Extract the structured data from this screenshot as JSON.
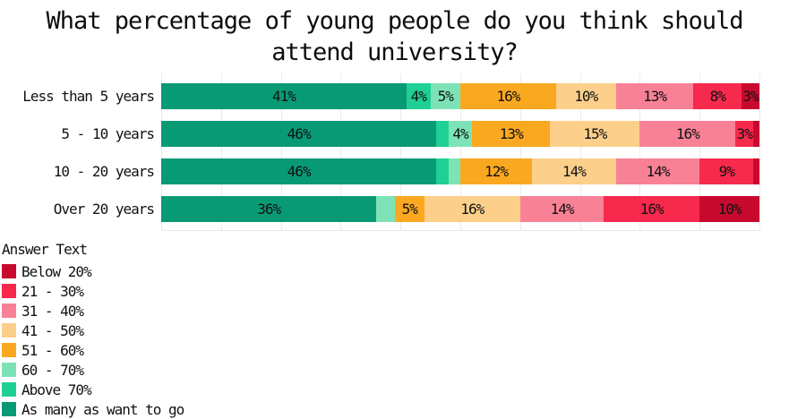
{
  "title": {
    "line1": "What percentage of young people do you think should",
    "line2": "attend university?"
  },
  "legend": {
    "header": "Answer Text"
  },
  "colors": {
    "background": "#ffffff",
    "gridline": "#ebebeb",
    "text": "#111111"
  },
  "chart_data": {
    "type": "bar",
    "variant": "horizontal-stacked-100-percent",
    "title": "What percentage of young people do you think should attend university?",
    "categories": [
      "Less than 5 years",
      "5 - 10 years",
      "10 - 20 years",
      "Over 20 years"
    ],
    "xlabel": "",
    "ylabel": "",
    "xlim": [
      0,
      100
    ],
    "grid": "vertical gridlines every 10%",
    "legend_title": "Answer Text",
    "legend_position": "bottom-left",
    "legend_order": [
      "Below 20%",
      "21 - 30%",
      "31 - 40%",
      "41 - 50%",
      "51 - 60%",
      "60 - 70%",
      "Above 70%",
      "As many as want to go"
    ],
    "series": [
      {
        "name": "As many as want to go",
        "color": "#089a75",
        "values": [
          41,
          46,
          46,
          36
        ],
        "labels": [
          "41%",
          "46%",
          "46%",
          "36%"
        ]
      },
      {
        "name": "Above 70%",
        "color": "#20cf94",
        "values": [
          4,
          2,
          2,
          0
        ],
        "labels": [
          "4%",
          "",
          "",
          ""
        ]
      },
      {
        "name": "60 - 70%",
        "color": "#7de3b6",
        "values": [
          5,
          4,
          2,
          3
        ],
        "labels": [
          "5%",
          "4%",
          "",
          ""
        ]
      },
      {
        "name": "51 - 60%",
        "color": "#fba821",
        "values": [
          16,
          13,
          12,
          5
        ],
        "labels": [
          "16%",
          "13%",
          "12%",
          "5%"
        ]
      },
      {
        "name": "41 - 50%",
        "color": "#fccf8b",
        "values": [
          10,
          15,
          14,
          16
        ],
        "labels": [
          "10%",
          "15%",
          "14%",
          "16%"
        ]
      },
      {
        "name": "31 - 40%",
        "color": "#f88196",
        "values": [
          13,
          16,
          14,
          14
        ],
        "labels": [
          "13%",
          "16%",
          "14%",
          "14%"
        ]
      },
      {
        "name": "21 - 30%",
        "color": "#f7294c",
        "values": [
          8,
          3,
          9,
          16
        ],
        "labels": [
          "8%",
          "3%",
          "9%",
          "16%"
        ]
      },
      {
        "name": "Below 20%",
        "color": "#c8092e",
        "values": [
          3,
          1,
          1,
          10
        ],
        "labels": [
          "3%",
          "",
          "",
          "10%"
        ]
      }
    ]
  }
}
